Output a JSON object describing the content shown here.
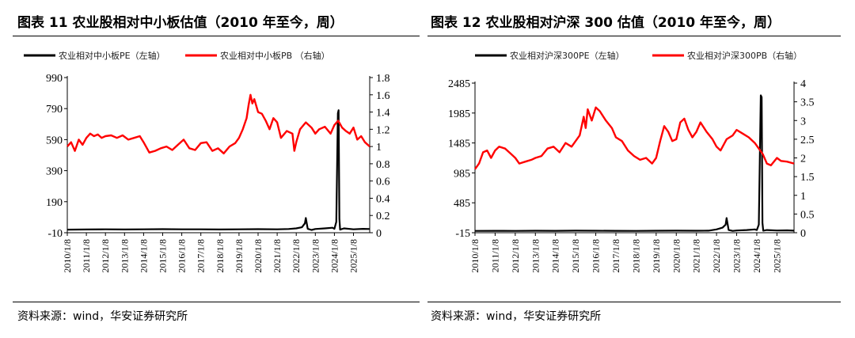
{
  "colors": {
    "pe": "#000000",
    "pb": "#ff0000"
  },
  "charts": [
    {
      "id": "left",
      "title": "图表 11 农业股相对中小板估值（2010 年至今，周）",
      "source": "资料来源：wind，华安证券研究所",
      "chart_data": {
        "type": "line",
        "legend": [
          "农业相对中小板PE（左轴）",
          "农业相对中小板PB （右轴）"
        ],
        "legend_position": "top",
        "x_ticks": [
          "2010/1/8",
          "2011/1/8",
          "2012/1/8",
          "2013/1/8",
          "2014/1/8",
          "2015/1/8",
          "2016/1/8",
          "2017/1/8",
          "2018/1/8",
          "2019/1/8",
          "2020/1/8",
          "2021/1/8",
          "2022/1/8",
          "2023/1/8",
          "2024/1/8",
          "2025/1/8"
        ],
        "x_range": [
          2010.0,
          2025.85
        ],
        "y_left_ticks": [
          "990",
          "790",
          "590",
          "390",
          "190",
          "-10"
        ],
        "y_left_range": [
          -10,
          990
        ],
        "y_right_ticks": [
          "1.8",
          "1.6",
          "1.4",
          "1.2",
          "1",
          "0.8",
          "0.6",
          "0.4",
          "0.2",
          "0"
        ],
        "y_right_range": [
          0,
          1.8
        ],
        "series": [
          {
            "name": "农业相对中小板PE（左轴）",
            "axis": "left",
            "color": "#000000",
            "x": [
              2010.0,
              2011.0,
              2012.0,
              2013.0,
              2014.0,
              2015.0,
              2016.0,
              2017.0,
              2018.0,
              2019.0,
              2020.0,
              2021.0,
              2021.6,
              2022.0,
              2022.3,
              2022.45,
              2022.5,
              2022.6,
              2022.8,
              2023.0,
              2023.5,
              2023.9,
              2024.0,
              2024.1,
              2024.18,
              2024.22,
              2024.26,
              2024.3,
              2024.5,
              2025.0,
              2025.5,
              2025.85
            ],
            "y": [
              10,
              11,
              12,
              11,
              12,
              13,
              12,
              12,
              11,
              12,
              13,
              12,
              14,
              18,
              25,
              50,
              85,
              15,
              8,
              14,
              18,
              22,
              15,
              60,
              760,
              780,
              80,
              10,
              18,
              12,
              15,
              14
            ]
          },
          {
            "name": "农业相对中小板PB （右轴）",
            "axis": "right",
            "color": "#ff0000",
            "x": [
              2010.0,
              2010.2,
              2010.4,
              2010.6,
              2010.8,
              2011.0,
              2011.2,
              2011.4,
              2011.6,
              2011.8,
              2012.0,
              2012.3,
              2012.6,
              2012.9,
              2013.2,
              2013.5,
              2013.8,
              2014.0,
              2014.3,
              2014.6,
              2014.9,
              2015.2,
              2015.5,
              2015.8,
              2016.1,
              2016.4,
              2016.7,
              2017.0,
              2017.3,
              2017.6,
              2017.9,
              2018.2,
              2018.5,
              2018.8,
              2019.0,
              2019.2,
              2019.4,
              2019.5,
              2019.6,
              2019.7,
              2019.8,
              2020.0,
              2020.2,
              2020.4,
              2020.6,
              2020.8,
              2021.0,
              2021.2,
              2021.5,
              2021.8,
              2021.9,
              2022.0,
              2022.2,
              2022.5,
              2022.8,
              2023.0,
              2023.2,
              2023.5,
              2023.8,
              2024.0,
              2024.2,
              2024.4,
              2024.6,
              2024.8,
              2025.0,
              2025.2,
              2025.4,
              2025.6,
              2025.85
            ],
            "y": [
              1.0,
              1.05,
              0.95,
              1.08,
              1.02,
              1.1,
              1.15,
              1.12,
              1.14,
              1.1,
              1.12,
              1.13,
              1.1,
              1.13,
              1.08,
              1.1,
              1.12,
              1.05,
              0.93,
              0.95,
              0.98,
              1.0,
              0.96,
              1.02,
              1.08,
              0.98,
              0.96,
              1.04,
              1.05,
              0.95,
              0.98,
              0.92,
              1.0,
              1.04,
              1.1,
              1.2,
              1.33,
              1.48,
              1.6,
              1.5,
              1.55,
              1.4,
              1.38,
              1.3,
              1.2,
              1.33,
              1.28,
              1.1,
              1.18,
              1.15,
              0.95,
              1.05,
              1.2,
              1.28,
              1.22,
              1.15,
              1.2,
              1.23,
              1.15,
              1.25,
              1.3,
              1.22,
              1.18,
              1.15,
              1.22,
              1.08,
              1.12,
              1.05,
              1.0
            ]
          }
        ]
      }
    },
    {
      "id": "right",
      "title": "图表 12 农业股相对沪深 300 估值（2010 年至今，周）",
      "source": "资料来源：wind，华安证券研究所",
      "chart_data": {
        "type": "line",
        "legend": [
          "农业相对沪深300PE（左轴）",
          "农业相对沪深300PB（右轴）"
        ],
        "legend_position": "top",
        "x_ticks": [
          "2010/1/8",
          "2011/1/8",
          "2012/1/8",
          "2013/1/8",
          "2014/1/8",
          "2015/1/8",
          "2016/1/8",
          "2017/1/8",
          "2018/1/8",
          "2019/1/8",
          "2020/1/8",
          "2021/1/8",
          "2022/1/8",
          "2023/1/8",
          "2024/1/8",
          "2025/1/8"
        ],
        "x_range": [
          2010.0,
          2025.85
        ],
        "y_left_ticks": [
          "2485",
          "1985",
          "1485",
          "985",
          "485",
          "-15"
        ],
        "y_left_range": [
          -15,
          2485
        ],
        "y_right_ticks": [
          "4",
          "3.5",
          "3",
          "2.5",
          "2",
          "1.5",
          "1",
          "0.5",
          "0"
        ],
        "y_right_range": [
          0,
          4
        ],
        "series": [
          {
            "name": "农业相对沪深300PE（左轴）",
            "axis": "left",
            "color": "#000000",
            "x": [
              2010.0,
              2011.0,
              2012.0,
              2013.0,
              2014.0,
              2015.0,
              2016.0,
              2017.0,
              2018.0,
              2019.0,
              2020.0,
              2021.0,
              2021.6,
              2022.0,
              2022.3,
              2022.45,
              2022.5,
              2022.6,
              2022.8,
              2023.0,
              2023.5,
              2023.9,
              2024.0,
              2024.1,
              2024.2,
              2024.24,
              2024.28,
              2024.32,
              2024.5,
              2025.0,
              2025.5,
              2025.85
            ],
            "y": [
              15,
              17,
              16,
              18,
              17,
              19,
              18,
              17,
              16,
              18,
              19,
              18,
              20,
              40,
              70,
              120,
              230,
              30,
              15,
              22,
              30,
              40,
              30,
              120,
              2280,
              2250,
              150,
              20,
              30,
              22,
              25,
              20
            ]
          },
          {
            "name": "农业相对沪深300PB（右轴）",
            "axis": "right",
            "color": "#ff0000",
            "x": [
              2010.0,
              2010.2,
              2010.4,
              2010.6,
              2010.8,
              2011.0,
              2011.2,
              2011.5,
              2011.8,
              2012.0,
              2012.2,
              2012.5,
              2012.8,
              2013.0,
              2013.3,
              2013.6,
              2013.9,
              2014.2,
              2014.5,
              2014.8,
              2015.0,
              2015.2,
              2015.4,
              2015.5,
              2015.6,
              2015.8,
              2016.0,
              2016.2,
              2016.5,
              2016.8,
              2017.0,
              2017.3,
              2017.6,
              2017.9,
              2018.2,
              2018.5,
              2018.8,
              2019.0,
              2019.2,
              2019.4,
              2019.6,
              2019.8,
              2020.0,
              2020.2,
              2020.4,
              2020.6,
              2020.8,
              2021.0,
              2021.2,
              2021.5,
              2021.8,
              2022.0,
              2022.2,
              2022.5,
              2022.8,
              2023.0,
              2023.3,
              2023.6,
              2023.9,
              2024.1,
              2024.3,
              2024.5,
              2024.7,
              2025.0,
              2025.2,
              2025.5,
              2025.85
            ],
            "y": [
              1.7,
              1.85,
              2.15,
              2.2,
              2.0,
              2.2,
              2.3,
              2.25,
              2.1,
              2.0,
              1.85,
              1.9,
              1.95,
              2.0,
              2.05,
              2.25,
              2.3,
              2.15,
              2.4,
              2.3,
              2.45,
              2.6,
              3.1,
              2.8,
              3.3,
              3.0,
              3.35,
              3.25,
              3.0,
              2.8,
              2.55,
              2.45,
              2.2,
              2.05,
              1.95,
              2.0,
              1.85,
              2.0,
              2.45,
              2.85,
              2.7,
              2.45,
              2.5,
              2.95,
              3.05,
              2.75,
              2.55,
              2.7,
              2.95,
              2.7,
              2.5,
              2.3,
              2.2,
              2.5,
              2.6,
              2.75,
              2.65,
              2.55,
              2.4,
              2.25,
              2.1,
              1.85,
              1.8,
              2.0,
              1.92,
              1.9,
              1.85
            ]
          }
        ]
      }
    }
  ]
}
